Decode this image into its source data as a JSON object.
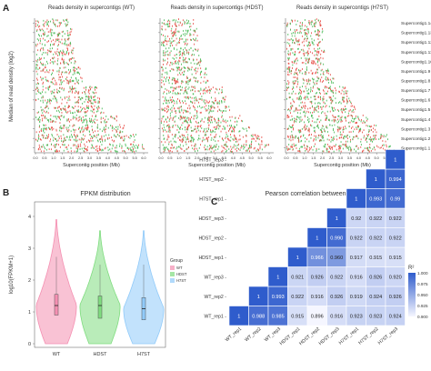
{
  "panels": [
    {
      "letter": "A",
      "ylabel": "Median of read density (log2)",
      "xlabel": "Supercontig position (Mb)",
      "subplots": [
        {
          "title": "Reads density in supercontigs (WT)",
          "xticks": [
            "0.0",
            "0.5",
            "1.0",
            "1.5",
            "2.0",
            "2.5",
            "3.0",
            "3.5",
            "4.0",
            "4.5",
            "5.0",
            "5.5",
            "6.0"
          ]
        },
        {
          "title": "Reads density in supercontigs (HDST)",
          "xticks": [
            "0.0",
            "0.5",
            "1.0",
            "1.5",
            "2.0",
            "2.5",
            "3.0",
            "3.5",
            "4.0",
            "4.5",
            "5.0",
            "5.5",
            "6.0"
          ]
        },
        {
          "title": "Reads density in supercontigs (H7ST)",
          "xticks": [
            "0.0",
            "0.5",
            "1.0",
            "1.5",
            "2.0",
            "2.5",
            "3.0",
            "3.5",
            "4.0",
            "4.5",
            "5.0",
            "5.5",
            "6.0"
          ]
        }
      ],
      "supercontigs": [
        "Supercontig1.14",
        "Supercontig1.13",
        "Supercontig1.12",
        "Supercontig1.11",
        "Supercontig1.10",
        "Supercontig1.9",
        "Supercontig1.8",
        "Supercontig1.7",
        "Supercontig1.6",
        "Supercontig1.5",
        "Supercontig1.4",
        "Supercontig1.3",
        "Supercontig1.2",
        "Supercontig1.1"
      ],
      "lengths_mb": [
        1.9,
        2.0,
        2.0,
        2.1,
        2.2,
        2.5,
        2.6,
        3.4,
        3.6,
        3.8,
        4.5,
        5.0,
        5.6,
        6.0
      ],
      "series_colors": {
        "red": "#e8554e",
        "green": "#4cbb5a"
      }
    },
    {
      "letter": "B",
      "chart_data": {
        "type": "violin",
        "title": "FPKM distribution",
        "ylabel": "log10(FPKM+1)",
        "categories": [
          "WT",
          "HDST",
          "H7ST"
        ],
        "ylim": [
          0,
          4
        ],
        "yticks": [
          "0",
          "1",
          "2",
          "3",
          "4"
        ],
        "max": [
          3.9,
          3.55,
          3.55
        ],
        "median": [
          1.2,
          1.2,
          1.1
        ],
        "q1": [
          0.9,
          0.8,
          0.75
        ],
        "q3": [
          1.55,
          1.5,
          1.45
        ],
        "colors": [
          "#f48fb1",
          "#7fdc7f",
          "#90caf9"
        ],
        "legend_title": "Group",
        "legend": [
          "WT",
          "HDST",
          "H7ST"
        ]
      }
    },
    {
      "letter": "C",
      "chart_data": {
        "type": "heatmap",
        "title": "Pearson correlation between samples",
        "samples": [
          "WT_rep1",
          "WT_rep2",
          "WT_rep3",
          "HDST_rep1",
          "HDST_rep2",
          "HDST_rep3",
          "H7ST_rep1",
          "H7ST_rep2",
          "H7ST_rep3"
        ],
        "values": [
          [
            "1",
            "0.988",
            "0.985",
            "0.915",
            "0.896",
            "0.916",
            "0.923",
            "0.923",
            "0.924"
          ],
          [
            "",
            "1",
            "0.993",
            "0.922",
            "0.916",
            "0.926",
            "0.919",
            "0.924",
            "0.926"
          ],
          [
            "",
            "",
            "1",
            "0.921",
            "0.926",
            "0.922",
            "0.916",
            "0.926",
            "0.920"
          ],
          [
            "",
            "",
            "",
            "1",
            "0.966",
            "0.960",
            "0.917",
            "0.915",
            "0.915"
          ],
          [
            "",
            "",
            "",
            "",
            "1",
            "0.990",
            "0.922",
            "0.922",
            "0.922"
          ],
          [
            "",
            "",
            "",
            "",
            "",
            "1",
            "0.92",
            "0.922",
            "0.922"
          ],
          [
            "",
            "",
            "",
            "",
            "",
            "",
            "1",
            "0.993",
            "0.99"
          ],
          [
            "",
            "",
            "",
            "",
            "",
            "",
            "",
            "1",
            "0.994"
          ],
          [
            "",
            "",
            "",
            "",
            "",
            "",
            "",
            "",
            "1"
          ]
        ],
        "legend_title": "R²",
        "legend_ticks": [
          "1.000",
          "0.975",
          "0.950",
          "0.925",
          "0.900"
        ],
        "color_low": "#f5f6ff",
        "color_high": "#2f5ccc"
      }
    }
  ]
}
